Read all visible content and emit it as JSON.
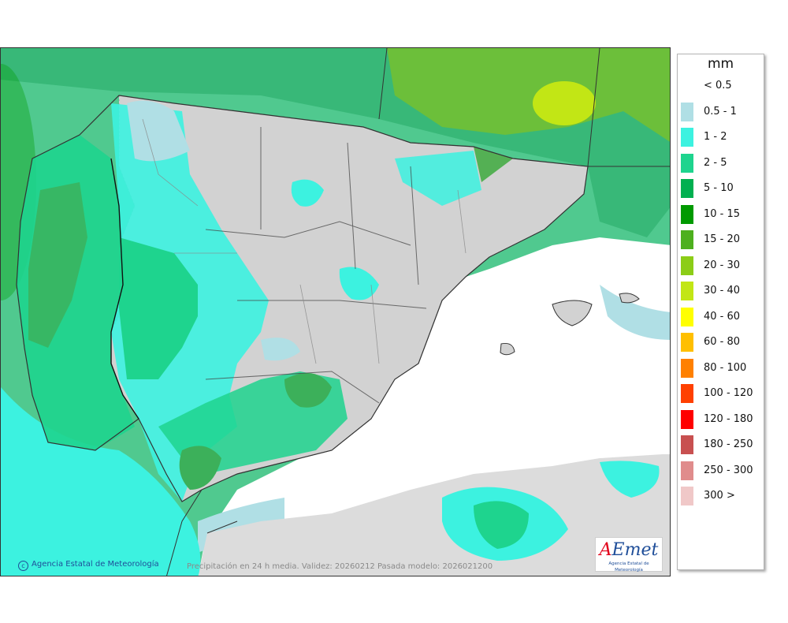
{
  "map": {
    "credit": "Agencia Estatal de Meteorología",
    "footer": "Precipitación en 24 h media. Validez: 20260212 Pasada modelo: 2026021200",
    "logo_text": "AEmet",
    "logo_subtitle": "Agencia Estatal de Meteorología"
  },
  "legend": {
    "unit": "mm",
    "items": [
      {
        "label": "< 0.5",
        "color": "#ffffff"
      },
      {
        "label": "0.5 - 1",
        "color": "#b0dfe5"
      },
      {
        "label": "1 - 2",
        "color": "#3cf2e0"
      },
      {
        "label": "2 - 5",
        "color": "#1ed48e"
      },
      {
        "label": "5 - 10",
        "color": "#00b050"
      },
      {
        "label": "10 - 15",
        "color": "#009a00"
      },
      {
        "label": "15 - 20",
        "color": "#4db01e"
      },
      {
        "label": "20 - 30",
        "color": "#8ccd17"
      },
      {
        "label": "30 - 40",
        "color": "#c2e615"
      },
      {
        "label": "40 - 60",
        "color": "#ffff00"
      },
      {
        "label": "60 - 80",
        "color": "#ffbf00"
      },
      {
        "label": "80 - 100",
        "color": "#ff8000"
      },
      {
        "label": "100 - 120",
        "color": "#ff4000"
      },
      {
        "label": "120 - 180",
        "color": "#ff0000"
      },
      {
        "label": "180 - 250",
        "color": "#c85050"
      },
      {
        "label": "250 - 300",
        "color": "#e08c8c"
      },
      {
        "label": "300 >",
        "color": "#f0c8c8"
      }
    ]
  }
}
